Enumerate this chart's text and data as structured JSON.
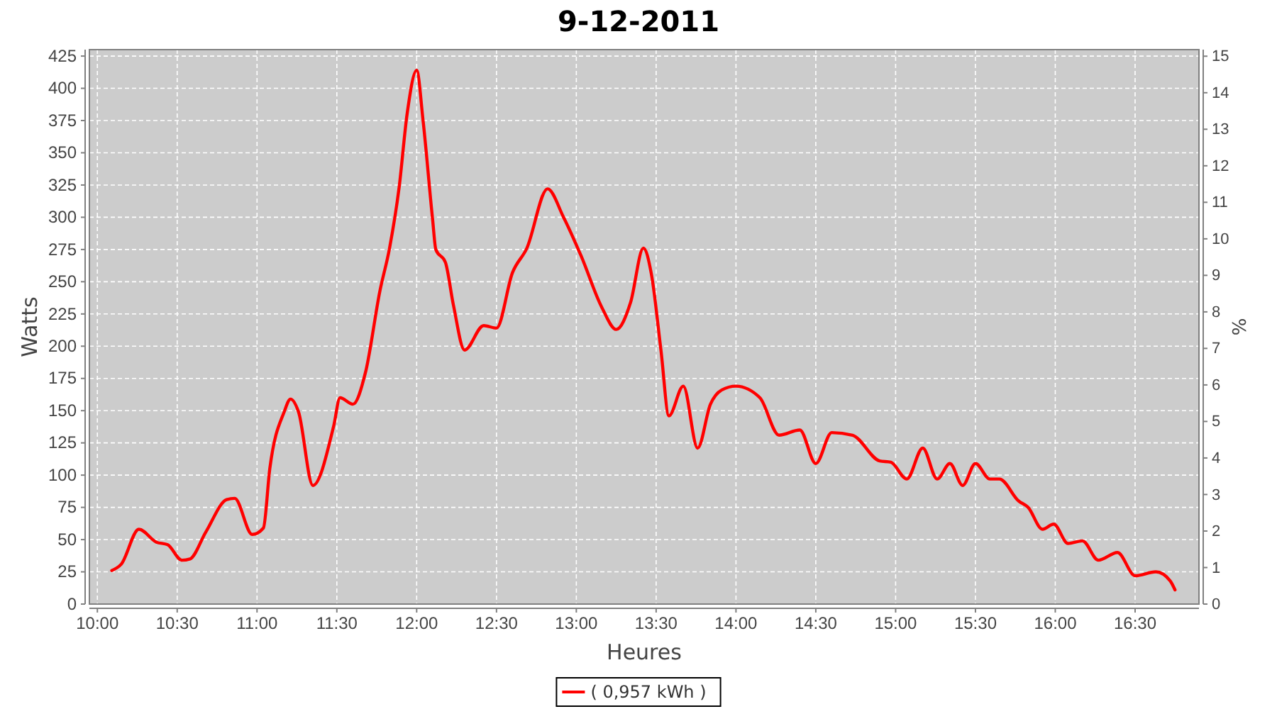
{
  "chart_data": {
    "type": "line",
    "title": "9-12-2011",
    "xlabel": "Heures",
    "ylabel": "Watts",
    "y2label": "%",
    "xlim": [
      9.95,
      16.9
    ],
    "xticks": [
      {
        "value": 10,
        "label": "10:00"
      },
      {
        "value": 10.5,
        "label": "10:30"
      },
      {
        "value": 11,
        "label": "11:00"
      },
      {
        "value": 11.5,
        "label": "11:30"
      },
      {
        "value": 12,
        "label": "12:00"
      },
      {
        "value": 12.5,
        "label": "12:30"
      },
      {
        "value": 13,
        "label": "13:00"
      },
      {
        "value": 13.5,
        "label": "13:30"
      },
      {
        "value": 14,
        "label": "14:00"
      },
      {
        "value": 14.5,
        "label": "14:30"
      },
      {
        "value": 15,
        "label": "15:00"
      },
      {
        "value": 15.5,
        "label": "15:30"
      },
      {
        "value": 16,
        "label": "16:00"
      },
      {
        "value": 16.5,
        "label": "16:30"
      }
    ],
    "ylim": [
      0,
      430
    ],
    "yticks": [
      0,
      25,
      50,
      75,
      100,
      125,
      150,
      175,
      200,
      225,
      250,
      275,
      300,
      325,
      350,
      375,
      400,
      425
    ],
    "y2lim": [
      0,
      15.18
    ],
    "y2ticks": [
      0,
      1,
      2,
      3,
      4,
      5,
      6,
      7,
      8,
      9,
      10,
      11,
      12,
      13,
      14,
      15
    ],
    "grid": true,
    "legend": "bottom",
    "marker": "none",
    "line_style": "solid",
    "series": [
      {
        "name": "( 0,957 kWh )",
        "color": "#ff0000",
        "x": [
          10.09,
          10.15,
          10.26,
          10.37,
          10.44,
          10.53,
          10.58,
          10.68,
          10.81,
          10.86,
          10.97,
          11.04,
          11.08,
          11.17,
          11.21,
          11.26,
          11.35,
          11.48,
          11.52,
          11.6,
          11.68,
          11.77,
          11.83,
          11.89,
          11.94,
          12.0,
          12.04,
          12.1,
          12.12,
          12.18,
          12.23,
          12.3,
          12.42,
          12.5,
          12.6,
          12.69,
          12.82,
          12.92,
          13.03,
          13.16,
          13.25,
          13.34,
          13.42,
          13.47,
          13.53,
          13.58,
          13.67,
          13.76,
          13.84,
          13.91,
          14.0,
          14.15,
          14.27,
          14.4,
          14.5,
          14.6,
          14.73,
          14.9,
          14.97,
          15.07,
          15.17,
          15.26,
          15.34,
          15.42,
          15.5,
          15.59,
          15.65,
          15.77,
          15.83,
          15.92,
          15.99,
          16.08,
          16.17,
          16.27,
          16.39,
          16.5,
          16.63,
          16.72,
          16.75
        ],
        "values": [
          26,
          31,
          58,
          48,
          46,
          34,
          35,
          56,
          81,
          82,
          54,
          59,
          105,
          149,
          159,
          149,
          92,
          138,
          160,
          155,
          180,
          243,
          276,
          323,
          380,
          414,
          375,
          298,
          275,
          265,
          232,
          197,
          216,
          214,
          257,
          276,
          322,
          300,
          270,
          230,
          213,
          234,
          276,
          256,
          197,
          146,
          169,
          121,
          155,
          166,
          169,
          160,
          131,
          135,
          109,
          133,
          131,
          111,
          110,
          97,
          121,
          97,
          109,
          92,
          109,
          97,
          97,
          80,
          75,
          58,
          62,
          47,
          49,
          34,
          40,
          22,
          25,
          18,
          11
        ]
      }
    ]
  }
}
